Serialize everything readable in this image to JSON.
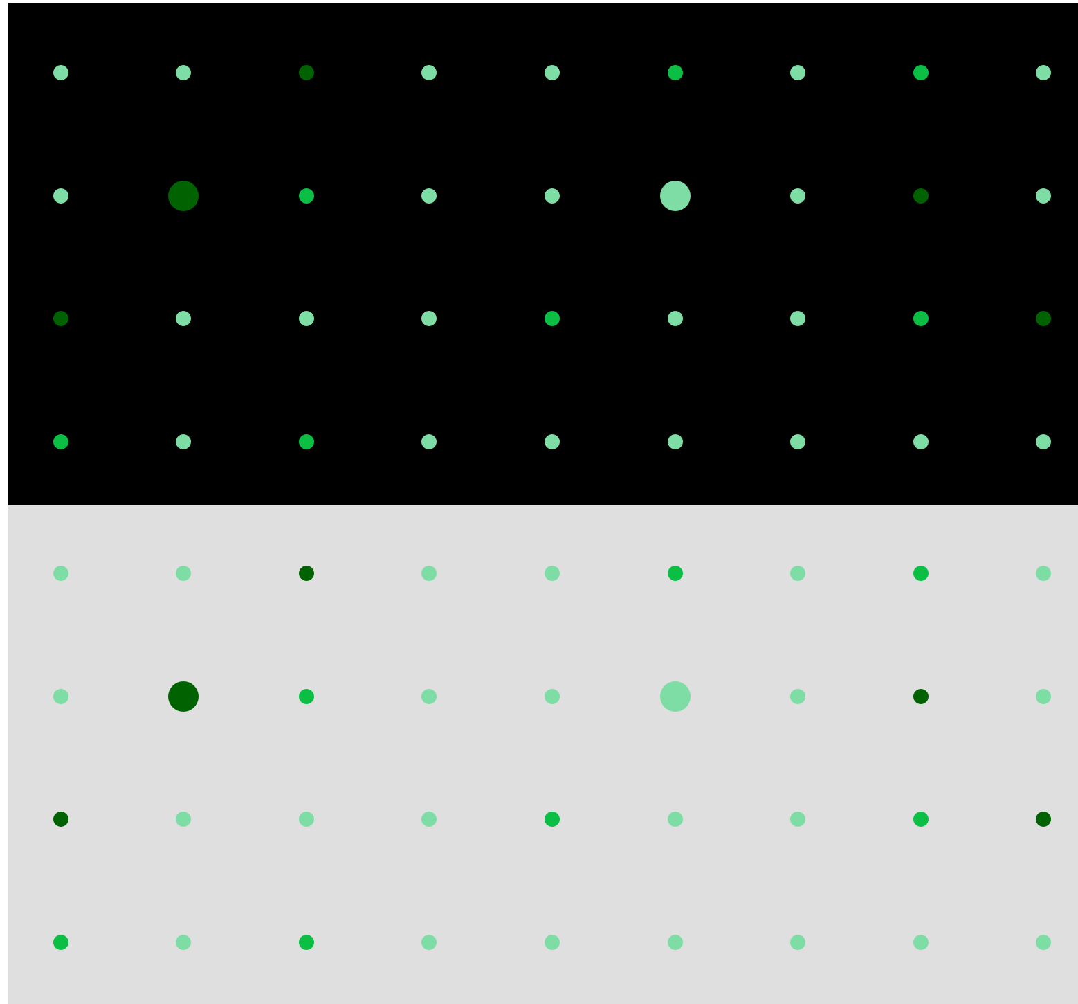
{
  "panels": [
    {
      "id": "dark",
      "background": "#000000",
      "palette": {
        "light": "#7edda4",
        "medium": "#0bbf45",
        "dark": "#016201"
      }
    },
    {
      "id": "light",
      "background": "#dfdfdf",
      "palette": {
        "light": "#7edda4",
        "medium": "#0bbf45",
        "dark": "#016201"
      }
    }
  ],
  "grid": {
    "rows": [
      [
        {
          "shade": "light",
          "size": "small"
        },
        {
          "shade": "light",
          "size": "small"
        },
        {
          "shade": "dark",
          "size": "small"
        },
        {
          "shade": "light",
          "size": "small"
        },
        {
          "shade": "light",
          "size": "small"
        },
        {
          "shade": "medium",
          "size": "small"
        },
        {
          "shade": "light",
          "size": "small"
        },
        {
          "shade": "medium",
          "size": "small"
        },
        {
          "shade": "light",
          "size": "small"
        }
      ],
      [
        {
          "shade": "light",
          "size": "small"
        },
        {
          "shade": "dark",
          "size": "large"
        },
        {
          "shade": "medium",
          "size": "small"
        },
        {
          "shade": "light",
          "size": "small"
        },
        {
          "shade": "light",
          "size": "small"
        },
        {
          "shade": "light",
          "size": "large"
        },
        {
          "shade": "light",
          "size": "small"
        },
        {
          "shade": "dark",
          "size": "small"
        },
        {
          "shade": "light",
          "size": "small"
        }
      ],
      [
        {
          "shade": "dark",
          "size": "small"
        },
        {
          "shade": "light",
          "size": "small"
        },
        {
          "shade": "light",
          "size": "small"
        },
        {
          "shade": "light",
          "size": "small"
        },
        {
          "shade": "medium",
          "size": "small"
        },
        {
          "shade": "light",
          "size": "small"
        },
        {
          "shade": "light",
          "size": "small"
        },
        {
          "shade": "medium",
          "size": "small"
        },
        {
          "shade": "dark",
          "size": "small"
        }
      ],
      [
        {
          "shade": "medium",
          "size": "small"
        },
        {
          "shade": "light",
          "size": "small"
        },
        {
          "shade": "medium",
          "size": "small"
        },
        {
          "shade": "light",
          "size": "small"
        },
        {
          "shade": "light",
          "size": "small"
        },
        {
          "shade": "light",
          "size": "small"
        },
        {
          "shade": "light",
          "size": "small"
        },
        {
          "shade": "light",
          "size": "small"
        },
        {
          "shade": "light",
          "size": "small"
        }
      ]
    ]
  }
}
